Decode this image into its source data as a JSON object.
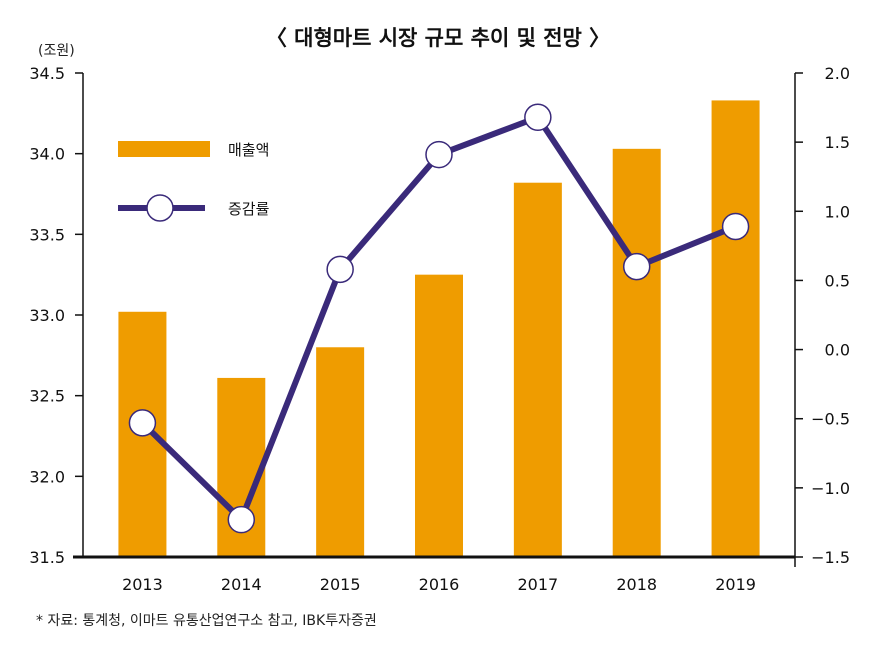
{
  "chart_data": {
    "type": "bar+line",
    "title": "〈 대형마트 시장 규모 추이 및 전망 〉",
    "y_unit_label": "(조원)",
    "categories": [
      "2013",
      "2014",
      "2015",
      "2016",
      "2017",
      "2018",
      "2019"
    ],
    "series": [
      {
        "name": "매출액",
        "type": "bar",
        "axis": "left",
        "color": "#EF9C00",
        "values": [
          33.02,
          32.61,
          32.8,
          33.25,
          33.82,
          34.03,
          34.33
        ]
      },
      {
        "name": "증감률",
        "type": "line",
        "axis": "right",
        "color": "#3A2A7A",
        "values": [
          -0.53,
          -1.23,
          0.58,
          1.41,
          1.68,
          0.6,
          0.89
        ]
      }
    ],
    "left_axis": {
      "ylim": [
        31.5,
        34.5
      ],
      "ticks": [
        "31.5",
        "32.0",
        "32.5",
        "33.0",
        "33.5",
        "34.0",
        "34.5"
      ]
    },
    "right_axis": {
      "ylim": [
        -1.5,
        2.0
      ],
      "ticks": [
        "−1.5",
        "−1.0",
        "−0.5",
        "0.0",
        "0.5",
        "1.0",
        "1.5",
        "2.0"
      ]
    },
    "grid": false,
    "legend": "top-left",
    "source": "* 자료: 통계청, 이마트 유통산업연구소 참고, IBK투자증권"
  }
}
